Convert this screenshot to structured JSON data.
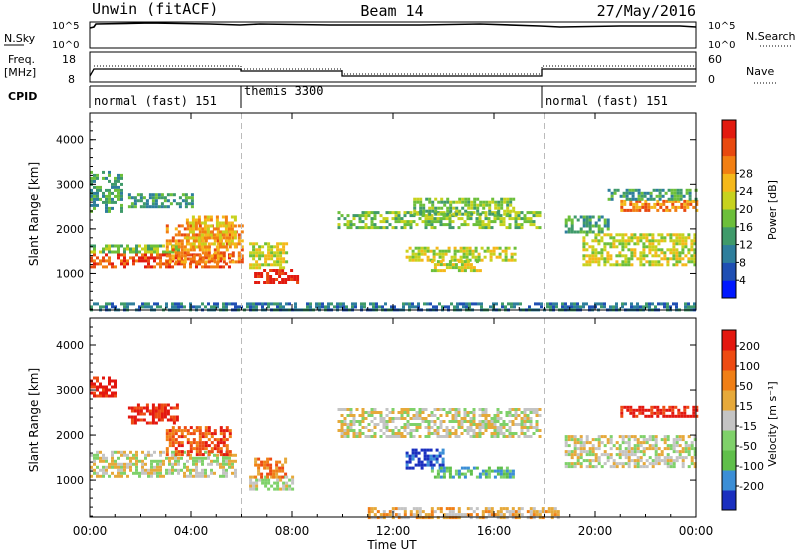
{
  "header": {
    "station": "Unwin (fitACF)",
    "beam": "Beam 14",
    "date": "27/May/2016"
  },
  "panels": {
    "nsky": {
      "left_label": "N.Sky",
      "right_label": "N.Search",
      "left_ticks": [
        "10^5",
        "10^0"
      ],
      "right_ticks": [
        "10^5",
        "10^0"
      ]
    },
    "freq": {
      "left_label_1": "Freq.",
      "left_label_2": "[MHz]",
      "right_label": "Nave",
      "left_ticks": [
        "18",
        "8"
      ],
      "right_ticks": [
        "60",
        "0"
      ]
    },
    "cpid": {
      "label": "CPID",
      "modes": [
        {
          "name": "normal (fast) 151",
          "start_hour": 0
        },
        {
          "name": "themis 3300",
          "start_hour": 6
        },
        {
          "name": "normal (fast) 151",
          "start_hour": 18
        }
      ]
    }
  },
  "colorbars": {
    "power": {
      "title": "Power [dB]",
      "tick_labels": [
        "4",
        "8",
        "12",
        "16",
        "20",
        "24",
        "28"
      ],
      "colors": [
        "#0018ff",
        "#1f4fb3",
        "#2e7e9c",
        "#3f9a6a",
        "#6cbf3a",
        "#c7d21e",
        "#f5b81a",
        "#f27f12",
        "#e8490f",
        "#e21a0f"
      ]
    },
    "velocity": {
      "title": "Velocity [m s⁻¹]",
      "tick_labels": [
        "200",
        "100",
        "50",
        "15",
        "-15",
        "-50",
        "-100",
        "-200"
      ],
      "colors": [
        "#1a2fbf",
        "#3b8ed6",
        "#5fbf4a",
        "#7fd16a",
        "#c4c4c4",
        "#e6a93a",
        "#f07f16",
        "#ee4b12",
        "#e3170f"
      ]
    }
  },
  "chart_data": [
    {
      "type": "heatmap",
      "ylabel": "Slant Range [km]",
      "xlabel": "Time UT",
      "x_tick_labels": [
        "00:00",
        "04:00",
        "08:00",
        "12:00",
        "16:00",
        "20:00",
        "00:00"
      ],
      "y_tick_labels": [
        "1000",
        "2000",
        "3000",
        "4000"
      ],
      "xlim": [
        0,
        24
      ],
      "ylim": [
        180,
        4600
      ],
      "colorbar": "power",
      "regions": [
        {
          "t0": 0.0,
          "t1": 5.6,
          "r0": 1150,
          "r1": 1450,
          "level": 8
        },
        {
          "t0": 0.0,
          "t1": 3.5,
          "r0": 1450,
          "r1": 1650,
          "level": 4
        },
        {
          "t0": 3.0,
          "t1": 6.0,
          "r0": 1250,
          "r1": 2100,
          "level": 7
        },
        {
          "t0": 3.8,
          "t1": 5.8,
          "r0": 1600,
          "r1": 2300,
          "level": 6
        },
        {
          "t0": 0.0,
          "t1": 1.2,
          "r0": 2400,
          "r1": 3300,
          "level": 3
        },
        {
          "t0": 1.5,
          "t1": 4.0,
          "r0": 2500,
          "r1": 2800,
          "level": 3
        },
        {
          "t0": 6.5,
          "t1": 8.2,
          "r0": 800,
          "r1": 1100,
          "level": 9
        },
        {
          "t0": 6.3,
          "t1": 7.8,
          "r0": 1100,
          "r1": 1700,
          "level": 5
        },
        {
          "t0": 9.8,
          "t1": 17.8,
          "r0": 2050,
          "r1": 2400,
          "level": 4
        },
        {
          "t0": 12.8,
          "t1": 16.8,
          "r0": 2300,
          "r1": 2700,
          "level": 4
        },
        {
          "t0": 12.5,
          "t1": 16.8,
          "r0": 1300,
          "r1": 1600,
          "level": 5
        },
        {
          "t0": 13.5,
          "t1": 15.5,
          "r0": 1050,
          "r1": 1300,
          "level": 5
        },
        {
          "t0": 18.8,
          "t1": 20.5,
          "r0": 1900,
          "r1": 2300,
          "level": 3
        },
        {
          "t0": 19.5,
          "t1": 24.0,
          "r0": 1200,
          "r1": 1900,
          "level": 5
        },
        {
          "t0": 21.0,
          "t1": 24.0,
          "r0": 2400,
          "r1": 2650,
          "level": 7
        },
        {
          "t0": 20.5,
          "t1": 24.0,
          "r0": 2650,
          "r1": 2900,
          "level": 3
        },
        {
          "t0": 0.0,
          "t1": 24.0,
          "r0": 200,
          "r1": 350,
          "level": 2
        }
      ]
    },
    {
      "type": "heatmap",
      "ylabel": "Slant Range [km]",
      "xlabel": "Time UT",
      "x_tick_labels": [
        "00:00",
        "04:00",
        "08:00",
        "12:00",
        "16:00",
        "20:00",
        "00:00"
      ],
      "y_tick_labels": [
        "1000",
        "2000",
        "3000",
        "4000"
      ],
      "xlim": [
        0,
        24
      ],
      "ylim": [
        180,
        4600
      ],
      "colorbar": "velocity",
      "regions": [
        {
          "t0": 0.0,
          "t1": 5.8,
          "r0": 1100,
          "r1": 1650,
          "level": 4
        },
        {
          "t0": 0.0,
          "t1": 1.0,
          "r0": 2900,
          "r1": 3300,
          "level": 8
        },
        {
          "t0": 1.5,
          "t1": 3.5,
          "r0": 2300,
          "r1": 2700,
          "level": 8
        },
        {
          "t0": 3.0,
          "t1": 5.5,
          "r0": 1600,
          "r1": 2200,
          "level": 7
        },
        {
          "t0": 6.3,
          "t1": 8.0,
          "r0": 800,
          "r1": 1100,
          "level": 4
        },
        {
          "t0": 6.5,
          "t1": 7.8,
          "r0": 1100,
          "r1": 1500,
          "level": 6
        },
        {
          "t0": 9.8,
          "t1": 17.8,
          "r0": 2000,
          "r1": 2600,
          "level": 4
        },
        {
          "t0": 12.5,
          "t1": 14.0,
          "r0": 1300,
          "r1": 1700,
          "level": 0
        },
        {
          "t0": 13.5,
          "t1": 16.8,
          "r0": 1050,
          "r1": 1300,
          "level": 2
        },
        {
          "t0": 18.8,
          "t1": 24.0,
          "r0": 1300,
          "r1": 2000,
          "level": 4
        },
        {
          "t0": 21.0,
          "t1": 24.0,
          "r0": 2400,
          "r1": 2650,
          "level": 8
        },
        {
          "t0": 11.0,
          "t1": 18.5,
          "r0": 200,
          "r1": 400,
          "level": 5
        }
      ]
    }
  ]
}
